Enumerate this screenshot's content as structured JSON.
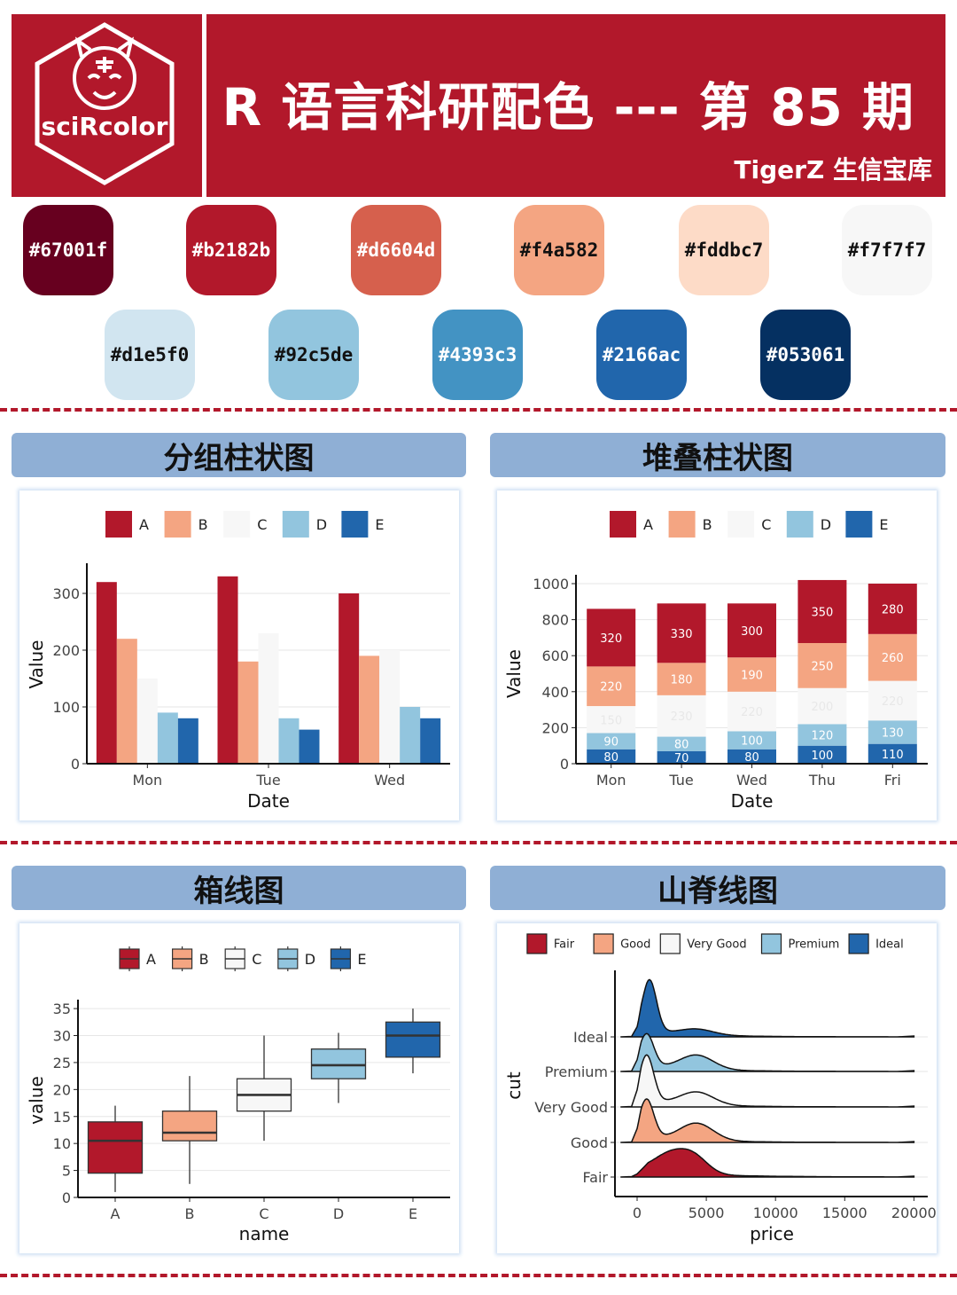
{
  "header": {
    "logo_text": "sciRcolor",
    "title": "R 语言科研配色 --- 第 85 期",
    "subtitle": "TigerZ 生信宝库"
  },
  "palette": [
    "#67001f",
    "#b2182b",
    "#d6604d",
    "#f4a582",
    "#fddbc7",
    "#f7f7f7",
    "#d1e5f0",
    "#92c5de",
    "#4393c3",
    "#2166ac",
    "#053061"
  ],
  "sections": {
    "grouped": "分组柱状图",
    "stacked": "堆叠柱状图",
    "box": "箱线图",
    "ridge": "山脊线图"
  },
  "chart_data": [
    {
      "type": "bar",
      "categories": [
        "Mon",
        "Tue",
        "Wed"
      ],
      "series": [
        {
          "name": "A",
          "values": [
            320,
            330,
            300
          ],
          "color": "#b2182b"
        },
        {
          "name": "B",
          "values": [
            220,
            180,
            190
          ],
          "color": "#f4a582"
        },
        {
          "name": "C",
          "values": [
            150,
            230,
            200
          ],
          "color": "#f7f7f7"
        },
        {
          "name": "D",
          "values": [
            90,
            80,
            100
          ],
          "color": "#92c5de"
        },
        {
          "name": "E",
          "values": [
            80,
            60,
            80
          ],
          "color": "#2166ac"
        }
      ],
      "xlabel": "Date",
      "ylabel": "Value",
      "ylim": [
        0,
        350
      ],
      "yticks": [
        0,
        100,
        200,
        300
      ],
      "legend": "top"
    },
    {
      "type": "bar",
      "stacked": true,
      "categories": [
        "Mon",
        "Tue",
        "Wed",
        "Thu",
        "Fri"
      ],
      "series": [
        {
          "name": "A",
          "values": [
            320,
            330,
            300,
            350,
            280
          ],
          "color": "#b2182b"
        },
        {
          "name": "B",
          "values": [
            220,
            180,
            190,
            250,
            260
          ],
          "color": "#f4a582"
        },
        {
          "name": "C",
          "values": [
            150,
            230,
            220,
            200,
            220
          ],
          "color": "#f7f7f7"
        },
        {
          "name": "D",
          "values": [
            90,
            80,
            100,
            120,
            130
          ],
          "color": "#92c5de"
        },
        {
          "name": "E",
          "values": [
            80,
            70,
            80,
            100,
            110
          ],
          "color": "#2166ac"
        }
      ],
      "xlabel": "Date",
      "ylabel": "Value",
      "ylim": [
        0,
        1000
      ],
      "yticks": [
        0,
        200,
        400,
        600,
        800,
        1000
      ],
      "legend": "top"
    },
    {
      "type": "box",
      "categories": [
        "A",
        "B",
        "C",
        "D",
        "E"
      ],
      "boxes": [
        {
          "name": "A",
          "min": 1,
          "q1": 4.5,
          "median": 10.5,
          "q3": 14,
          "max": 17,
          "color": "#b2182b"
        },
        {
          "name": "B",
          "min": 2.5,
          "q1": 10.5,
          "median": 12,
          "q3": 16,
          "max": 22.5,
          "color": "#f4a582"
        },
        {
          "name": "C",
          "min": 10.5,
          "q1": 16,
          "median": 19,
          "q3": 22,
          "max": 30,
          "color": "#f7f7f7"
        },
        {
          "name": "D",
          "min": 17.5,
          "q1": 22,
          "median": 24.5,
          "q3": 27.5,
          "max": 30.5,
          "color": "#92c5de"
        },
        {
          "name": "E",
          "min": 23,
          "q1": 26,
          "median": 30,
          "q3": 32.5,
          "max": 35,
          "color": "#2166ac"
        }
      ],
      "xlabel": "name",
      "ylabel": "value",
      "ylim": [
        0,
        36
      ],
      "yticks": [
        0,
        5,
        10,
        15,
        20,
        25,
        30,
        35
      ],
      "legend": "top"
    },
    {
      "type": "ridgeline",
      "series": [
        {
          "name": "Fair",
          "color": "#b2182b",
          "peaks": [
            [
              2500,
              0.7
            ],
            [
              4200,
              0.45
            ]
          ]
        },
        {
          "name": "Good",
          "color": "#f4a582",
          "peaks": [
            [
              700,
              1.3
            ],
            [
              4300,
              0.6
            ]
          ]
        },
        {
          "name": "Very Good",
          "color": "#f7f7f7",
          "peaks": [
            [
              700,
              1.6
            ],
            [
              4300,
              0.45
            ]
          ]
        },
        {
          "name": "Premium",
          "color": "#92c5de",
          "peaks": [
            [
              700,
              1.1
            ],
            [
              4300,
              0.5
            ]
          ]
        },
        {
          "name": "Ideal",
          "color": "#2166ac",
          "peaks": [
            [
              900,
              1.8
            ],
            [
              4300,
              0.2
            ]
          ]
        }
      ],
      "xlabel": "price",
      "ylabel": "cut",
      "xlim": [
        0,
        20000
      ],
      "xticks": [
        0,
        5000,
        10000,
        15000,
        20000
      ],
      "legend": "top"
    }
  ]
}
